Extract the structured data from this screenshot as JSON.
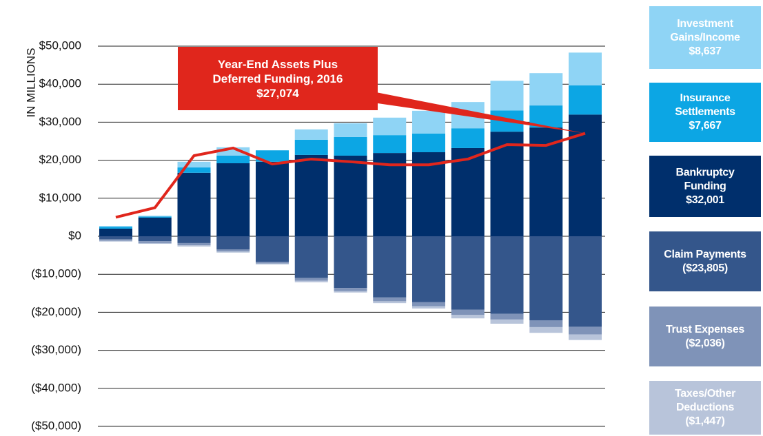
{
  "chart_data": {
    "type": "bar",
    "y_label": "IN MILLIONS",
    "categories": [
      null,
      null,
      null,
      null,
      null,
      null,
      null,
      null,
      null,
      null,
      null,
      null,
      null
    ],
    "ylim": [
      -50000,
      50000
    ],
    "yticks": [
      {
        "value": 50000,
        "label": "$50,000"
      },
      {
        "value": 40000,
        "label": "$40,000"
      },
      {
        "value": 30000,
        "label": "$30,000"
      },
      {
        "value": 20000,
        "label": "$20,000"
      },
      {
        "value": 10000,
        "label": "$10,000"
      },
      {
        "value": 0,
        "label": "$0"
      },
      {
        "value": -10000,
        "label": "($10,000)"
      },
      {
        "value": -20000,
        "label": "($20,000)"
      },
      {
        "value": -30000,
        "label": "($30,000)"
      },
      {
        "value": -40000,
        "label": "($40,000)"
      },
      {
        "value": -50000,
        "label": "($50,000)"
      }
    ],
    "grid": true,
    "series": [
      {
        "name": "Investment Gains/Income",
        "color": "#8fd4f5",
        "values": [
          200,
          200,
          1500,
          2200,
          0,
          2700,
          3600,
          4600,
          6000,
          6900,
          7800,
          8500,
          8637
        ],
        "value_labels": [
          null,
          null,
          null,
          null,
          null,
          null,
          null,
          null,
          null,
          null,
          null,
          null,
          "$8,637"
        ]
      },
      {
        "name": "Insurance Settlements",
        "color": "#0ca6e4",
        "values": [
          500,
          300,
          1400,
          2000,
          3000,
          4000,
          4900,
          4700,
          4900,
          5200,
          5600,
          5800,
          7667
        ],
        "value_labels": [
          null,
          null,
          null,
          null,
          null,
          null,
          null,
          null,
          null,
          null,
          null,
          null,
          "$7,667"
        ]
      },
      {
        "name": "Bankruptcy Funding",
        "color": "#002f6c",
        "values": [
          2000,
          4900,
          16700,
          19200,
          19600,
          21400,
          21200,
          21900,
          22100,
          23200,
          27500,
          28600,
          32001
        ],
        "value_labels": [
          null,
          null,
          null,
          null,
          null,
          null,
          null,
          null,
          null,
          null,
          null,
          null,
          "$32,001"
        ]
      },
      {
        "name": "Claim Payments",
        "color": "#34568b",
        "values": [
          -800,
          -1300,
          -1800,
          -3500,
          -6700,
          -11000,
          -13600,
          -16100,
          -17300,
          -19300,
          -20400,
          -22100,
          -23805
        ],
        "value_labels": [
          null,
          null,
          null,
          null,
          null,
          null,
          null,
          null,
          null,
          null,
          null,
          null,
          "($23,805)"
        ]
      },
      {
        "name": "Trust Expenses",
        "color": "#7f93b8",
        "values": [
          -400,
          -500,
          -600,
          -500,
          -500,
          -700,
          -800,
          -1000,
          -1100,
          -1400,
          -1500,
          -1800,
          -2036
        ],
        "value_labels": [
          null,
          null,
          null,
          null,
          null,
          null,
          null,
          null,
          null,
          null,
          null,
          null,
          "($2,036)"
        ]
      },
      {
        "name": "Taxes/Other Deductions",
        "color": "#b8c4da",
        "values": [
          -200,
          -200,
          -300,
          -300,
          -200,
          -400,
          -400,
          -500,
          -600,
          -900,
          -1100,
          -1500,
          -1447
        ],
        "value_labels": [
          null,
          null,
          null,
          null,
          null,
          null,
          null,
          null,
          null,
          null,
          null,
          null,
          "($1,447)"
        ]
      }
    ],
    "line": {
      "color": "#e0261c",
      "values": [
        5000,
        7500,
        21200,
        23200,
        19000,
        20300,
        19600,
        18800,
        18800,
        20300,
        24100,
        23900,
        27074
      ],
      "value_labels": [
        null,
        null,
        null,
        null,
        null,
        null,
        null,
        null,
        null,
        null,
        null,
        null,
        "$27,074"
      ]
    },
    "callout": {
      "text": "Year-End Assets Plus Deferred Funding, 2016"
    }
  }
}
